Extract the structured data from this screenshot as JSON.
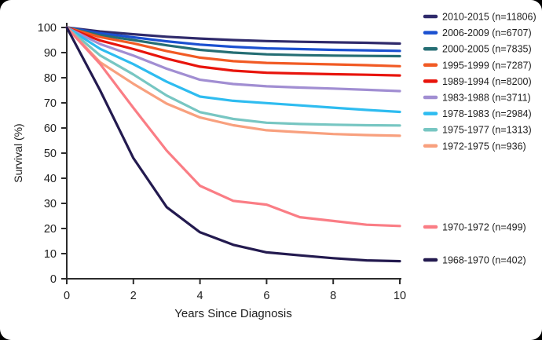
{
  "colors": {
    "background": "#000000",
    "card": "#ffffff",
    "axis": "#2b2b2b",
    "text": "#1e1e1e"
  },
  "chart_data": {
    "type": "line",
    "title": "",
    "xlabel": "Years Since Diagnosis",
    "ylabel": "Survival (%)",
    "xlim": [
      0,
      10
    ],
    "ylim": [
      0,
      100
    ],
    "xticks": [
      0,
      2,
      4,
      6,
      8,
      10
    ],
    "yticks": [
      0,
      10,
      20,
      30,
      40,
      50,
      60,
      70,
      80,
      90,
      100
    ],
    "grid": false,
    "legend_position": "right",
    "x": [
      0,
      1,
      2,
      3,
      4,
      5,
      6,
      7,
      8,
      9,
      10
    ],
    "series": [
      {
        "name": "2010-2015 (n=11806)",
        "color": "#2f2a6b",
        "values": [
          100,
          98.4,
          97.3,
          96.3,
          95.6,
          95.0,
          94.6,
          94.3,
          94.1,
          93.9,
          93.6
        ]
      },
      {
        "name": "2006-2009 (n=6707)",
        "color": "#1b50d0",
        "values": [
          100,
          97.7,
          96.1,
          94.5,
          93.2,
          92.3,
          91.7,
          91.4,
          91.1,
          90.9,
          90.7
        ]
      },
      {
        "name": "2000-2005 (n=7835)",
        "color": "#256e74",
        "values": [
          100,
          96.9,
          95.0,
          92.9,
          91.1,
          90.0,
          89.3,
          89.0,
          88.8,
          88.7,
          88.6
        ]
      },
      {
        "name": "1995-1999 (n=7287)",
        "color": "#f15a24",
        "values": [
          100,
          96.2,
          93.7,
          90.6,
          88.0,
          86.6,
          85.9,
          85.6,
          85.3,
          85.0,
          84.6
        ]
      },
      {
        "name": "1989-1994 (n=8200)",
        "color": "#e8140c",
        "values": [
          100,
          94.8,
          91.4,
          87.6,
          84.4,
          82.8,
          82.0,
          81.7,
          81.4,
          81.2,
          80.9
        ]
      },
      {
        "name": "1983-1988 (n=3711)",
        "color": "#a18ed2",
        "values": [
          100,
          93.4,
          88.8,
          83.6,
          79.2,
          77.5,
          76.6,
          76.1,
          75.7,
          75.2,
          74.7
        ]
      },
      {
        "name": "1978-1983 (n=2984)",
        "color": "#2ebcf0",
        "values": [
          100,
          91.5,
          85.4,
          78.4,
          72.5,
          70.8,
          69.9,
          69.0,
          68.1,
          67.2,
          66.4
        ]
      },
      {
        "name": "1975-1977 (n=1313)",
        "color": "#77c6c2",
        "values": [
          100,
          88.9,
          81.3,
          72.9,
          66.3,
          63.6,
          62.1,
          61.6,
          61.3,
          61.1,
          61.0
        ]
      },
      {
        "name": "1972-1975 (n=936)",
        "color": "#f8a07e",
        "values": [
          100,
          86.2,
          77.6,
          69.7,
          64.2,
          61.1,
          59.1,
          58.3,
          57.6,
          57.2,
          56.9
        ]
      },
      {
        "name": "1970-1972 (n=499)",
        "color": "#fa7d85",
        "values": [
          100,
          85.5,
          68.0,
          51.0,
          37.0,
          31.0,
          29.5,
          24.5,
          23.0,
          21.5,
          21.0
        ]
      },
      {
        "name": "1968-1970 (n=402)",
        "color": "#231a4f",
        "values": [
          100,
          75.0,
          48.0,
          28.5,
          18.5,
          13.5,
          10.5,
          9.3,
          8.2,
          7.3,
          7.0
        ]
      }
    ]
  }
}
